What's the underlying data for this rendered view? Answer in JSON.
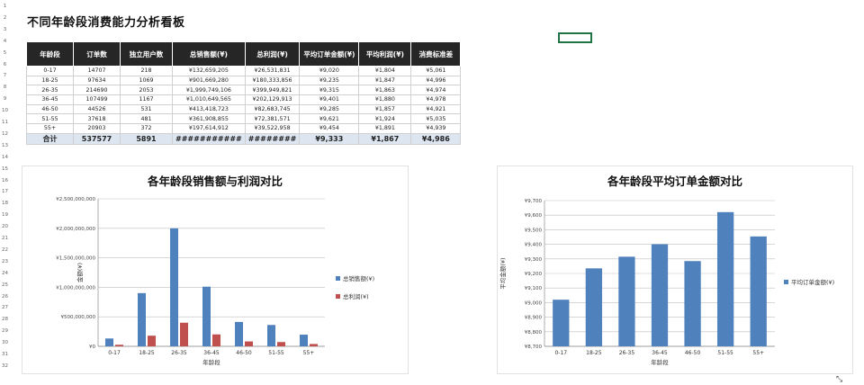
{
  "sheet": {
    "row_numbers": [
      "1",
      "2",
      "3",
      "4",
      "5",
      "6",
      "7",
      "8",
      "9",
      "10",
      "11",
      "12",
      "13",
      "14",
      "15",
      "16",
      "17",
      "18",
      "19",
      "20",
      "21",
      "22",
      "23",
      "24",
      "25",
      "26",
      "27",
      "28",
      "29",
      "30",
      "31",
      "32"
    ],
    "title": "不同年龄段消费能力分析看板"
  },
  "table": {
    "headers": [
      "年龄段",
      "订单数",
      "独立用户数",
      "总销售额(¥)",
      "总利润(¥)",
      "平均订单金额(¥)",
      "平均利润(¥)",
      "消费标准差"
    ],
    "rows": [
      [
        "0-17",
        "14707",
        "218",
        "¥132,659,205",
        "¥26,531,831",
        "¥9,020",
        "¥1,804",
        "¥5,061"
      ],
      [
        "18-25",
        "97634",
        "1069",
        "¥901,669,280",
        "¥180,333,856",
        "¥9,235",
        "¥1,847",
        "¥4,996"
      ],
      [
        "26-35",
        "214690",
        "2053",
        "¥1,999,749,106",
        "¥399,949,821",
        "¥9,315",
        "¥1,863",
        "¥4,974"
      ],
      [
        "36-45",
        "107499",
        "1167",
        "¥1,010,649,565",
        "¥202,129,913",
        "¥9,401",
        "¥1,880",
        "¥4,978"
      ],
      [
        "46-50",
        "44526",
        "531",
        "¥413,418,723",
        "¥82,683,745",
        "¥9,285",
        "¥1,857",
        "¥4,921"
      ],
      [
        "51-55",
        "37618",
        "481",
        "¥361,908,855",
        "¥72,381,571",
        "¥9,621",
        "¥1,924",
        "¥5,035"
      ],
      [
        "55+",
        "20903",
        "372",
        "¥197,614,912",
        "¥39,522,958",
        "¥9,454",
        "¥1,891",
        "¥4,939"
      ]
    ],
    "total": [
      "合计",
      "537577",
      "5891",
      "###########",
      "########",
      "¥9,333",
      "¥1,867",
      "¥4,986"
    ]
  },
  "chart_data": [
    {
      "type": "bar",
      "title": "各年龄段销售额与利润对比",
      "xlabel": "年龄段",
      "ylabel": "金额(¥)",
      "categories": [
        "0-17",
        "18-25",
        "26-35",
        "36-45",
        "46-50",
        "51-55",
        "55+"
      ],
      "series": [
        {
          "name": "总销售额(¥)",
          "color": "#4f81bd",
          "values": [
            132659205,
            901669280,
            1999749106,
            1010649565,
            413418723,
            361908855,
            197614912
          ]
        },
        {
          "name": "总利润(¥)",
          "color": "#c0504d",
          "values": [
            26531831,
            180333856,
            399949821,
            202129913,
            82683745,
            72381571,
            39522958
          ]
        }
      ],
      "ylim": [
        0,
        2500000000
      ],
      "yticks": [
        "¥0",
        "¥500,000,000",
        "¥1,000,000,000",
        "¥1,500,000,000",
        "¥2,000,000,000",
        "¥2,500,000,000"
      ],
      "grid": true,
      "legend": "right"
    },
    {
      "type": "bar",
      "title": "各年龄段平均订单金额对比",
      "xlabel": "年龄段",
      "ylabel": "平均金额(¥)",
      "categories": [
        "0-17",
        "18-25",
        "26-35",
        "36-45",
        "46-50",
        "51-55",
        "55+"
      ],
      "series": [
        {
          "name": "平均订单金额(¥)",
          "color": "#4f81bd",
          "values": [
            9020,
            9235,
            9315,
            9401,
            9285,
            9621,
            9454
          ]
        }
      ],
      "ylim": [
        8700,
        9700
      ],
      "yticks": [
        "¥8,700",
        "¥8,800",
        "¥8,900",
        "¥9,000",
        "¥9,100",
        "¥9,200",
        "¥9,300",
        "¥9,400",
        "¥9,500",
        "¥9,600",
        "¥9,700"
      ],
      "grid": true,
      "legend": "right"
    }
  ]
}
